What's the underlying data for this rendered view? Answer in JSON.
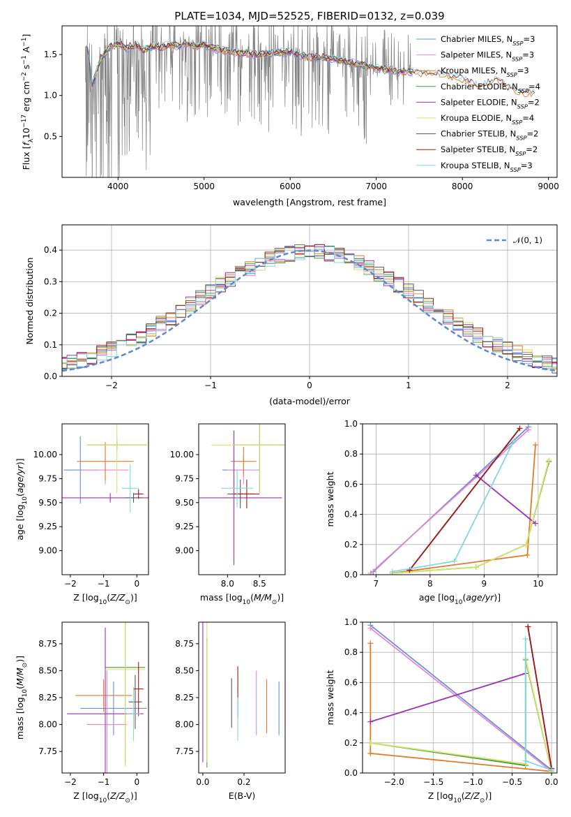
{
  "chart_data": [
    {
      "type": "line",
      "title": "PLATE=1034, MJD=52525, FIBERID=0132, z=0.039",
      "xlabel": "wavelength [Angstrom, rest frame]",
      "ylabel": "Flux [f_λ 10^-17 erg cm^-2 s^-1 A^-1]",
      "xlim": [
        3350,
        9100
      ],
      "ylim": [
        0,
        1.85
      ],
      "xticks": [
        "4000",
        "5000",
        "6000",
        "7000",
        "8000",
        "9000"
      ],
      "yticks": [
        "0.5",
        "1.0",
        "1.5"
      ],
      "legend_position": "upper right",
      "series": [
        {
          "name": "Chabrier MILES, N_SSP=3",
          "color": "#6a8fe0"
        },
        {
          "name": "Salpeter MILES, N_SSP=3",
          "color": "#e58ac9"
        },
        {
          "name": "Kroupa MILES, N_SSP=3",
          "color": "#e07b28"
        },
        {
          "name": "Chabrier ELODIE, N_SSP=4",
          "color": "#4a9a3a"
        },
        {
          "name": "Salpeter ELODIE, N_SSP=2",
          "color": "#9b30b8"
        },
        {
          "name": "Kroupa ELODIE, N_SSP=4",
          "color": "#d4e36a"
        },
        {
          "name": "Chabrier STELIB, N_SSP=2",
          "color": "#555555"
        },
        {
          "name": "Salpeter STELIB, N_SSP=2",
          "color": "#a01a1a"
        },
        {
          "name": "Kroupa STELIB, N_SSP=3",
          "color": "#7fd8e0"
        }
      ],
      "data_color": "#808080",
      "model_x": [
        3650,
        3700,
        3800,
        3900,
        4000,
        4100,
        4200,
        4300,
        4400,
        4500,
        4600,
        4700,
        4800,
        4900,
        5000,
        5200,
        5400,
        5600,
        5800,
        6000,
        6200,
        6400,
        6600,
        6800,
        7000,
        7200,
        7400,
        7600,
        7800,
        8000,
        8200,
        8400,
        8600,
        8800
      ],
      "model_y": [
        1.6,
        1.12,
        1.45,
        1.58,
        1.63,
        1.58,
        1.62,
        1.55,
        1.6,
        1.58,
        1.62,
        1.6,
        1.64,
        1.6,
        1.62,
        1.55,
        1.52,
        1.5,
        1.52,
        1.53,
        1.47,
        1.46,
        1.42,
        1.38,
        1.33,
        1.3,
        1.28,
        1.27,
        1.25,
        1.2,
        1.1,
        1.2,
        1.05,
        1.02
      ]
    },
    {
      "type": "line",
      "xlabel": "(data-model)/error",
      "ylabel": "Normed distribution",
      "xlim": [
        -2.5,
        2.5
      ],
      "ylim": [
        0,
        0.48
      ],
      "xticks": [
        "−2",
        "−1",
        "0",
        "1",
        "2"
      ],
      "yticks": [
        "0.0",
        "0.1",
        "0.2",
        "0.3",
        "0.4"
      ],
      "grid": true,
      "legend": "N(0, 1)",
      "legend_position": "upper right",
      "reference_curve": {
        "name": "N(0, 1)",
        "mean": 0,
        "std": 1,
        "color": "#5b87d6",
        "style": "dashed"
      }
    },
    {
      "type": "scatter",
      "xlabel": "Z [log10(Z/Z⊙)]",
      "ylabel": "age [log10(age/yr)]",
      "xlim": [
        -2.25,
        0.35
      ],
      "ylim": [
        8.75,
        10.32
      ],
      "xticks": [
        "−2",
        "−1",
        "0"
      ],
      "yticks": [
        "9.00",
        "9.25",
        "9.50",
        "9.75",
        "10.00"
      ],
      "points": [
        {
          "x": -1.7,
          "y": 9.84,
          "xerr": 0.5,
          "yerr": 0.35,
          "color": "#6a8fe0"
        },
        {
          "x": -0.95,
          "y": 9.84,
          "xerr": 0.7,
          "yerr": 0.15,
          "color": "#e58ac9"
        },
        {
          "x": -0.95,
          "y": 9.93,
          "xerr": 0.85,
          "yerr": 0.2,
          "color": "#e07b28"
        },
        {
          "x": -0.6,
          "y": 10.1,
          "xerr": 0.9,
          "yerr": 0.05,
          "color": "#4a9a3a"
        },
        {
          "x": -0.8,
          "y": 9.55,
          "xerr": 1.45,
          "yerr": 0.05,
          "color": "#9b30b8"
        },
        {
          "x": -0.6,
          "y": 10.1,
          "xerr": 0.9,
          "yerr": 0.5,
          "color": "#d4e36a"
        },
        {
          "x": -0.1,
          "y": 9.55,
          "xerr": 0.25,
          "yerr": 0.05,
          "color": "#555555"
        },
        {
          "x": 0.05,
          "y": 9.59,
          "xerr": 0.15,
          "yerr": 0.05,
          "color": "#a01a1a"
        },
        {
          "x": -0.2,
          "y": 9.65,
          "xerr": 0.25,
          "yerr": 0.25,
          "color": "#7fd8e0"
        }
      ]
    },
    {
      "type": "scatter",
      "xlabel": "mass [log10(M/M⊙)]",
      "ylabel": "",
      "xlim": [
        7.55,
        8.9
      ],
      "ylim": [
        8.75,
        10.32
      ],
      "xticks": [
        "8.0",
        "8.5"
      ],
      "yticks": [
        "9.00",
        "9.25",
        "9.50",
        "9.75",
        "10.00"
      ],
      "points": [
        {
          "x": 8.1,
          "y": 9.84,
          "xerr": 0.18,
          "yerr": 0.4,
          "color": "#6a8fe0"
        },
        {
          "x": 8.25,
          "y": 9.84,
          "xerr": 0.25,
          "yerr": 0.15,
          "color": "#e58ac9"
        },
        {
          "x": 8.25,
          "y": 9.93,
          "xerr": 0.2,
          "yerr": 0.15,
          "color": "#e07b28"
        },
        {
          "x": 8.5,
          "y": 10.1,
          "xerr": 0.4,
          "yerr": 0.5,
          "color": "#4a9a3a"
        },
        {
          "x": 8.1,
          "y": 9.55,
          "xerr": 0.75,
          "yerr": 0.7,
          "color": "#9b30b8"
        },
        {
          "x": 8.5,
          "y": 10.1,
          "xerr": 0.75,
          "yerr": 0.5,
          "color": "#d4e36a"
        },
        {
          "x": 8.2,
          "y": 9.59,
          "xerr": 0.2,
          "yerr": 0.15,
          "color": "#555555"
        },
        {
          "x": 8.3,
          "y": 9.59,
          "xerr": 0.2,
          "yerr": 0.15,
          "color": "#a01a1a"
        },
        {
          "x": 8.15,
          "y": 9.65,
          "xerr": 0.25,
          "yerr": 0.2,
          "color": "#7fd8e0"
        }
      ]
    },
    {
      "type": "line",
      "xlabel": "age [log10(age/yr)]",
      "ylabel": "mass weight",
      "xlim": [
        6.75,
        10.35
      ],
      "ylim": [
        0,
        1.0
      ],
      "xticks": [
        "7",
        "8",
        "9",
        "10"
      ],
      "yticks": [
        "0.0",
        "0.2",
        "0.4",
        "0.6",
        "0.8",
        "1.0"
      ],
      "grid": true,
      "series": [
        {
          "name": "Chabrier MILES",
          "color": "#6a8fe0",
          "x": [
            6.95,
            9.82
          ],
          "y": [
            0.02,
            0.98
          ]
        },
        {
          "name": "Salpeter MILES",
          "color": "#e58ac9",
          "x": [
            6.9,
            9.82
          ],
          "y": [
            0.01,
            0.96
          ]
        },
        {
          "name": "Kroupa MILES",
          "color": "#e07b28",
          "x": [
            7.3,
            9.8,
            9.95
          ],
          "y": [
            0.01,
            0.13,
            0.86
          ]
        },
        {
          "name": "Chabrier ELODIE",
          "color": "#4a9a3a",
          "x": [
            7.3,
            8.85,
            9.78,
            10.2
          ],
          "y": [
            0.01,
            0.05,
            0.2,
            0.75
          ]
        },
        {
          "name": "Salpeter ELODIE",
          "color": "#9b30b8",
          "x": [
            8.85,
            9.95
          ],
          "y": [
            0.66,
            0.34
          ]
        },
        {
          "name": "Kroupa ELODIE",
          "color": "#d4e36a",
          "x": [
            7.3,
            8.85,
            9.78,
            10.2
          ],
          "y": [
            0.01,
            0.05,
            0.2,
            0.76
          ]
        },
        {
          "name": "Chabrier STELIB",
          "color": "#555555",
          "x": [
            7.62,
            9.66
          ],
          "y": [
            0.03,
            0.97
          ]
        },
        {
          "name": "Salpeter STELIB",
          "color": "#a01a1a",
          "x": [
            7.62,
            9.66
          ],
          "y": [
            0.03,
            0.97
          ]
        },
        {
          "name": "Kroupa STELIB",
          "color": "#7fd8e0",
          "x": [
            7.3,
            8.45,
            9.55
          ],
          "y": [
            0.02,
            0.09,
            0.89
          ]
        }
      ]
    },
    {
      "type": "scatter",
      "xlabel": "Z [log10(Z/Z⊙)]",
      "ylabel": "mass [log10(M/M⊙)]",
      "xlim": [
        -2.25,
        0.35
      ],
      "ylim": [
        7.55,
        8.95
      ],
      "xticks": [
        "−2",
        "−1",
        "0"
      ],
      "yticks": [
        "7.75",
        "8.00",
        "8.25",
        "8.50",
        "8.75"
      ],
      "points": [
        {
          "x": -0.7,
          "y": 8.15,
          "xerr": 1.0,
          "yerr": 0.25,
          "color": "#6a8fe0"
        },
        {
          "x": -0.9,
          "y": 8.0,
          "xerr": 0.6,
          "yerr": 0.5,
          "color": "#e58ac9"
        },
        {
          "x": -1.0,
          "y": 8.27,
          "xerr": 0.85,
          "yerr": 0.15,
          "color": "#e07b28"
        },
        {
          "x": -0.35,
          "y": 8.53,
          "xerr": 0.6,
          "yerr": 0.9,
          "color": "#4a9a3a"
        },
        {
          "x": -0.95,
          "y": 8.1,
          "xerr": 1.15,
          "yerr": 0.8,
          "color": "#9b30b8"
        },
        {
          "x": -0.35,
          "y": 8.51,
          "xerr": 0.6,
          "yerr": 0.9,
          "color": "#d4e36a"
        },
        {
          "x": -0.05,
          "y": 8.21,
          "xerr": 0.2,
          "yerr": 0.25,
          "color": "#555555"
        },
        {
          "x": 0.05,
          "y": 8.33,
          "xerr": 0.15,
          "yerr": 0.25,
          "color": "#a01a1a"
        },
        {
          "x": -0.1,
          "y": 8.1,
          "xerr": 0.2,
          "yerr": 0.25,
          "color": "#7fd8e0"
        }
      ]
    },
    {
      "type": "scatter",
      "xlabel": "E(B-V)",
      "ylabel": "",
      "xlim": [
        -0.02,
        0.4
      ],
      "ylim": [
        7.55,
        8.95
      ],
      "xticks": [
        "0.0",
        "0.2"
      ],
      "yticks": [
        "7.75",
        "8.00",
        "8.25",
        "8.50",
        "8.75"
      ],
      "points": [
        {
          "x": 0.37,
          "y": 8.15,
          "yerr": 0.25,
          "color": "#6a8fe0"
        },
        {
          "x": 0.26,
          "y": 8.2,
          "yerr": 0.3,
          "color": "#e58ac9"
        },
        {
          "x": 0.31,
          "y": 8.17,
          "yerr": 0.25,
          "color": "#e07b28"
        },
        {
          "x": 0.02,
          "y": 8.2,
          "yerr": 0.6,
          "color": "#4a9a3a"
        },
        {
          "x": 0.0,
          "y": 8.3,
          "yerr": 0.65,
          "color": "#9b30b8"
        },
        {
          "x": 0.02,
          "y": 8.3,
          "yerr": 0.65,
          "color": "#d4e36a"
        },
        {
          "x": 0.14,
          "y": 8.2,
          "yerr": 0.23,
          "color": "#555555"
        },
        {
          "x": 0.17,
          "y": 8.3,
          "yerr": 0.24,
          "color": "#a01a1a"
        },
        {
          "x": 0.17,
          "y": 8.05,
          "yerr": 0.2,
          "color": "#7fd8e0"
        }
      ]
    },
    {
      "type": "line",
      "xlabel": "Z [log10(Z/Z⊙)]",
      "ylabel": "mass weight",
      "xlim": [
        -2.4,
        0.07
      ],
      "ylim": [
        0,
        1.0
      ],
      "xticks": [
        "−2.0",
        "−1.5",
        "−1.0",
        "−0.5",
        "0.0"
      ],
      "yticks": [
        "0.0",
        "0.2",
        "0.4",
        "0.6",
        "0.8",
        "1.0"
      ],
      "grid": true,
      "series": [
        {
          "name": "Chabrier MILES",
          "color": "#6a8fe0",
          "x": [
            -2.3,
            0.0
          ],
          "y": [
            0.98,
            0.02
          ]
        },
        {
          "name": "Salpeter MILES",
          "color": "#e58ac9",
          "x": [
            -2.3,
            0.0
          ],
          "y": [
            0.96,
            0.01
          ]
        },
        {
          "name": "Kroupa MILES",
          "color": "#e07b28",
          "x": [
            -2.3,
            -2.3,
            0.0
          ],
          "y": [
            0.86,
            0.13,
            0.01
          ]
        },
        {
          "name": "Chabrier ELODIE",
          "color": "#4a9a3a",
          "x": [
            -2.3,
            -0.33,
            -0.33,
            0.0
          ],
          "y": [
            0.2,
            0.05,
            0.75,
            0.01
          ]
        },
        {
          "name": "Salpeter ELODIE",
          "color": "#9b30b8",
          "x": [
            -2.3,
            -0.33
          ],
          "y": [
            0.34,
            0.66
          ]
        },
        {
          "name": "Kroupa ELODIE",
          "color": "#d4e36a",
          "x": [
            -2.3,
            -0.33,
            -0.33,
            0.0
          ],
          "y": [
            0.2,
            0.06,
            0.76,
            0.01
          ]
        },
        {
          "name": "Chabrier STELIB",
          "color": "#555555",
          "x": [
            -0.3,
            0.0
          ],
          "y": [
            0.97,
            0.03
          ]
        },
        {
          "name": "Salpeter STELIB",
          "color": "#a01a1a",
          "x": [
            -0.3,
            0.0
          ],
          "y": [
            0.97,
            0.03
          ]
        },
        {
          "name": "Kroupa STELIB",
          "color": "#7fd8e0",
          "x": [
            -0.33,
            -0.33,
            0.0
          ],
          "y": [
            0.89,
            0.08,
            0.02
          ]
        }
      ]
    }
  ]
}
